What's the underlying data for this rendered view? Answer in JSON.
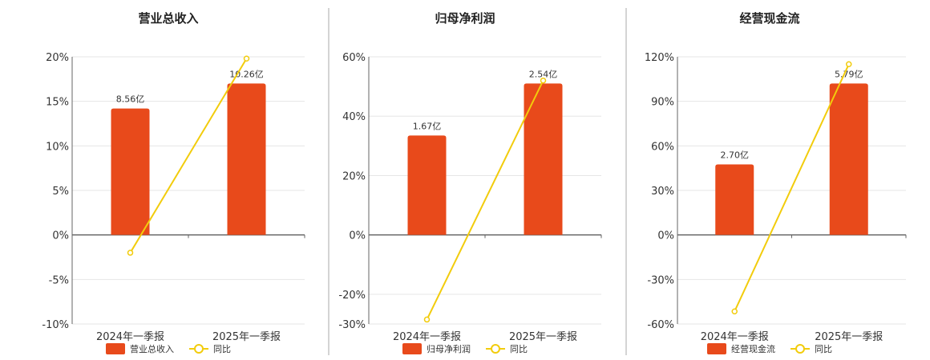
{
  "colors": {
    "bar": "#E84A1B",
    "line": "#F2CC0C",
    "grid": "#E6E6E6",
    "axis": "#666666",
    "divider": "#AAAAAA"
  },
  "chart_data": [
    {
      "type": "bar",
      "title": "营业总收入",
      "categories": [
        "2024年一季报",
        "2025年一季报"
      ],
      "bar_labels": [
        "8.56亿",
        "10.26亿"
      ],
      "ylim": [
        -10,
        20
      ],
      "yticks": [
        20,
        15,
        10,
        5,
        0,
        -5,
        -10
      ],
      "ytick_labels": [
        "20%",
        "15%",
        "10%",
        "5%",
        "0%",
        "-5%",
        "-10%"
      ],
      "series": [
        {
          "name": "营业总收入",
          "type": "bar",
          "values": [
            14.2,
            17.0
          ],
          "amounts": [
            8.56,
            10.26
          ],
          "unit": "亿"
        },
        {
          "name": "同比",
          "type": "line",
          "values": [
            -2.0,
            19.8
          ]
        }
      ],
      "legend": [
        "营业总收入",
        "同比"
      ],
      "legend_position": "bottom",
      "grid": true
    },
    {
      "type": "bar",
      "title": "归母净利润",
      "categories": [
        "2024年一季报",
        "2025年一季报"
      ],
      "bar_labels": [
        "1.67亿",
        "2.54亿"
      ],
      "ylim": [
        -30,
        60
      ],
      "yticks": [
        60,
        40,
        20,
        0,
        -20,
        -30
      ],
      "ytick_labels": [
        "60%",
        "40%",
        "20%",
        "0%",
        "-20%",
        "-30%"
      ],
      "series": [
        {
          "name": "归母净利润",
          "type": "bar",
          "values": [
            33.5,
            51.0
          ],
          "amounts": [
            1.67,
            2.54
          ],
          "unit": "亿"
        },
        {
          "name": "同比",
          "type": "line",
          "values": [
            -28.5,
            52.0
          ]
        }
      ],
      "legend": [
        "归母净利润",
        "同比"
      ],
      "legend_position": "bottom",
      "grid": true
    },
    {
      "type": "bar",
      "title": "经营现金流",
      "categories": [
        "2024年一季报",
        "2025年一季报"
      ],
      "bar_labels": [
        "2.70亿",
        "5.79亿"
      ],
      "ylim": [
        -60,
        120
      ],
      "yticks": [
        120,
        90,
        60,
        30,
        0,
        -30,
        -60
      ],
      "ytick_labels": [
        "120%",
        "90%",
        "60%",
        "30%",
        "0%",
        "-30%",
        "-60%"
      ],
      "series": [
        {
          "name": "经营现金流",
          "type": "bar",
          "values": [
            47.5,
            102.0
          ],
          "amounts": [
            2.7,
            5.79
          ],
          "unit": "亿"
        },
        {
          "name": "同比",
          "type": "line",
          "values": [
            -51.5,
            115.0
          ]
        }
      ],
      "legend": [
        "经营现金流",
        "同比"
      ],
      "legend_position": "bottom",
      "grid": true
    }
  ]
}
